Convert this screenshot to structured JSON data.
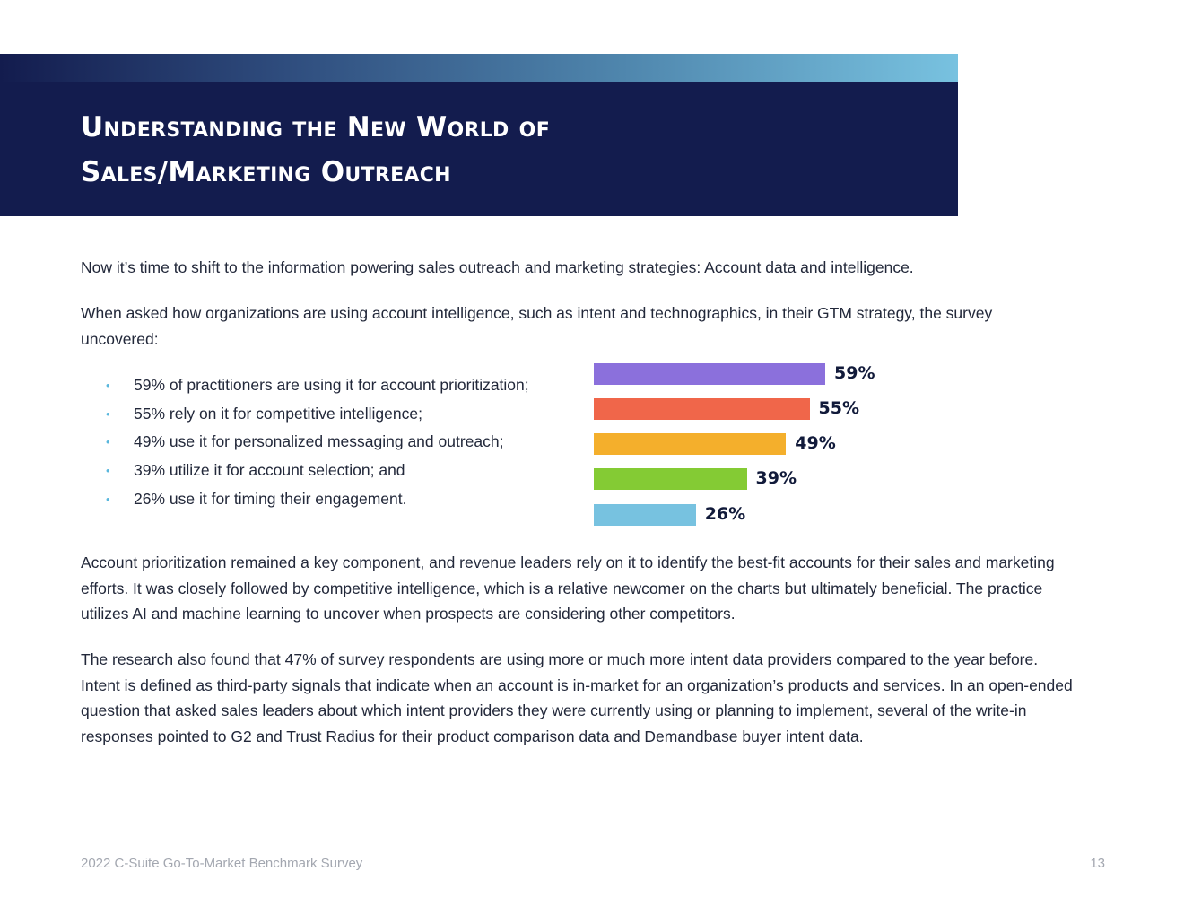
{
  "header": {
    "title_line1": "Understanding the New World of",
    "title_line2": "Sales/Marketing Outreach"
  },
  "body": {
    "intro": "Now it’s time to shift to the information powering sales outreach and marketing strategies: Account data and intelligence.",
    "question": "When asked how organizations are using account intelligence, such as intent and technographics, in their GTM strategy, the survey uncovered:",
    "bullets": [
      "59% of practitioners are using it for account prioritization;",
      "55% rely on it for competitive intelligence;",
      "49% use it for personalized messaging and outreach;",
      "39% utilize it for account selection; and",
      "26% use it for timing their engagement."
    ],
    "paragraph3": "Account prioritization remained a key component, and revenue leaders rely on it to identify the best-fit accounts for their sales and marketing efforts. It was closely followed by competitive intelligence, which is a relative newcomer on the charts but ultimately beneficial. The practice utilizes AI and machine learning to uncover when prospects are considering other competitors.",
    "paragraph4": "The research also found that 47% of survey respondents are using more or much more intent data providers compared to the year before. Intent is defined as third-party signals that indicate when an account is in-market for an organization’s products and services. In an open-ended question that asked sales leaders about which intent providers they were currently using or planning to implement, several of the write-in responses pointed to G2 and Trust Radius for their product comparison data and Demandbase buyer intent data."
  },
  "bullet_marker": "•",
  "chart_data": {
    "type": "bar",
    "orientation": "horizontal",
    "values": [
      59,
      55,
      49,
      39,
      26
    ],
    "data_labels": [
      "59%",
      "55%",
      "49%",
      "39%",
      "26%"
    ],
    "colors": [
      "#8b70dc",
      "#f0664a",
      "#f4af2c",
      "#84cb34",
      "#77c2e0"
    ],
    "xlim": [
      0,
      100
    ],
    "grid": false
  },
  "colors": {
    "navy": "#131c4e",
    "gradient_end": "#78c2e0",
    "bullet": "#59b7dd"
  },
  "footer": {
    "left": "2022 C-Suite Go-To-Market Benchmark Survey",
    "page_number": "13"
  }
}
